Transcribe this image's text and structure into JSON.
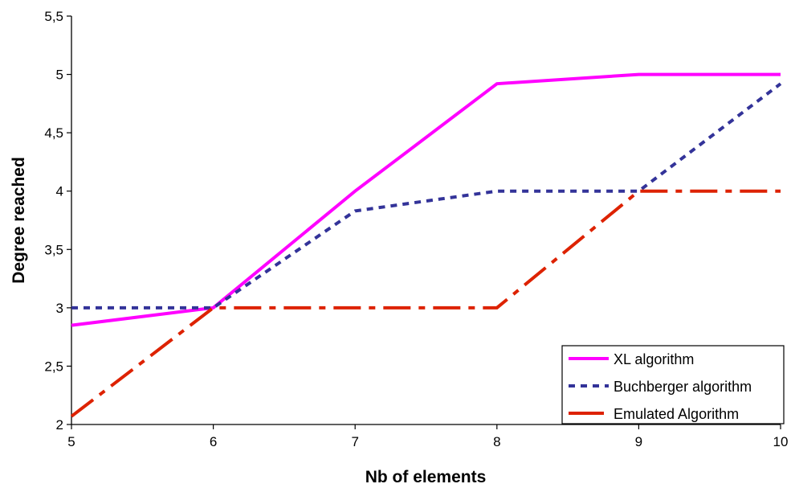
{
  "chart_data": {
    "type": "line",
    "title": "",
    "xlabel": "Nb of elements",
    "ylabel": "Degree reached",
    "x": [
      5,
      6,
      7,
      8,
      9,
      10
    ],
    "xlim": [
      5,
      10
    ],
    "ylim": [
      2,
      5.5
    ],
    "x_ticks": [
      "5",
      "6",
      "7",
      "8",
      "9",
      "10"
    ],
    "y_ticks": [
      "2",
      "2,5",
      "3",
      "3,5",
      "4",
      "4,5",
      "5",
      "5,5"
    ],
    "grid": false,
    "legend_position": "bottom-right",
    "series": [
      {
        "name": "XL algorithm",
        "values": [
          2.85,
          3.0,
          4.0,
          4.92,
          5.0,
          5.0
        ],
        "color": "#ff00ff",
        "style": "solid"
      },
      {
        "name": "Buchberger algorithm",
        "values": [
          3.0,
          3.0,
          3.83,
          4.0,
          4.0,
          4.92
        ],
        "color": "#333399",
        "style": "dotted"
      },
      {
        "name": "Emulated Algorithm",
        "values": [
          2.07,
          3.0,
          3.0,
          3.0,
          4.0,
          4.0
        ],
        "color": "#dd2200",
        "style": "dash-dot"
      }
    ]
  }
}
